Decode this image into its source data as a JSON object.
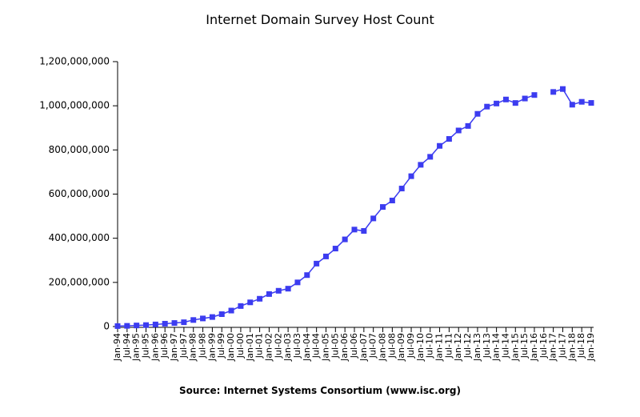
{
  "chart_data": {
    "type": "line",
    "title": "Internet Domain Survey Host Count",
    "source": "Source: Internet Systems Consortium (www.isc.org)",
    "categories": [
      "Jan-94",
      "Jul-94",
      "Jan-95",
      "Jul-95",
      "Jan-96",
      "Jul-96",
      "Jan-97",
      "Jul-97",
      "Jan-98",
      "Jul-98",
      "Jan-99",
      "Jul-99",
      "Jan-00",
      "Jul-00",
      "Jan-01",
      "Jul-01",
      "Jan-02",
      "Jul-02",
      "Jan-03",
      "Jul-03",
      "Jan-04",
      "Jul-04",
      "Jan-05",
      "Jul-05",
      "Jan-06",
      "Jul-06",
      "Jan-07",
      "Jul-07",
      "Jan-08",
      "Jul-08",
      "Jan-09",
      "Jul-09",
      "Jan-10",
      "Jul-10",
      "Jan-11",
      "Jul-11",
      "Jan-12",
      "Jul-12",
      "Jan-13",
      "Jul-13",
      "Jan-14",
      "Jul-14",
      "Jan-15",
      "Jul-15",
      "Jan-16",
      "Jul-16",
      "Jan-17",
      "Jul-17",
      "Jan-18",
      "Jul-18",
      "Jan-19"
    ],
    "series": [
      {
        "name": "Host Count",
        "color": "#3c3cf0",
        "values": [
          2200000,
          3200000,
          4900000,
          6600000,
          9500000,
          12900000,
          16100000,
          19500000,
          29700000,
          36700000,
          43200000,
          56200000,
          72400000,
          93000000,
          109600000,
          125900000,
          147300000,
          162100000,
          171600000,
          200000000,
          233100000,
          285100000,
          317600000,
          353300000,
          394900000,
          439300000,
          433200000,
          489800000,
          541700000,
          570900000,
          625200000,
          681100000,
          732700000,
          768900000,
          818400000,
          849900000,
          888200000,
          908600000,
          963500000,
          996200000,
          1010300000,
          1028500000,
          1012700000,
          1033000000,
          1048800000,
          null,
          1062700000,
          1076000000,
          1005000000,
          1018000000,
          1013000000
        ]
      }
    ],
    "ylim": [
      0,
      1200000000
    ],
    "yticks": [
      0,
      {
        "value": 200000000,
        "label": "200,000,000"
      },
      {
        "value": 400000000,
        "label": "400,000,000"
      },
      {
        "value": 600000000,
        "label": "600,000,000"
      },
      {
        "value": 800000000,
        "label": "800,000,000"
      },
      {
        "value": 1000000000,
        "label": "1,000,000,000"
      },
      {
        "value": 1200000000,
        "label": "1,200,000,000"
      }
    ]
  }
}
